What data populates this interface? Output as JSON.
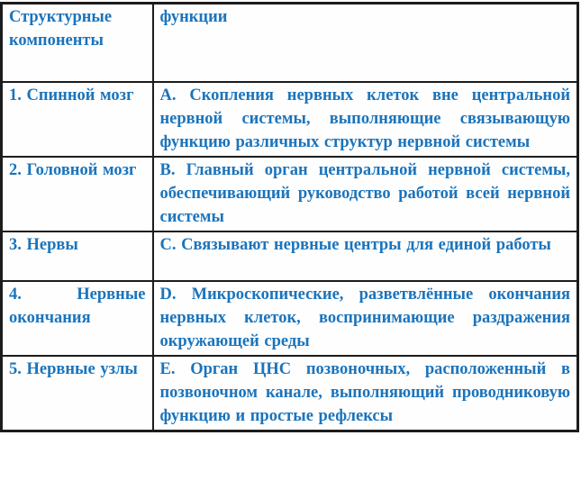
{
  "accent_color": "#1b74bc",
  "border_color": "#1c1c1c",
  "table": {
    "headers": {
      "components": "Структурные компоненты",
      "functions": "функции"
    },
    "rows": [
      {
        "component": "1. Спинной мозг",
        "function": "A. Скопления нервных клеток вне центральной нервной системы, выполняющие связывающую функцию различных структур нервной системы"
      },
      {
        "component": "2. Головной мозг",
        "function": "B. Главный орган центральной нервной системы, обеспечивающий руководство работой всей нервной системы"
      },
      {
        "component": "3. Нервы",
        "function": "C. Связывают нервные центры для единой работы"
      },
      {
        "component": "4. Нервные окончания",
        "function": "D. Микроскопические, разветвлённые окончания нервных клеток, воспринимающие раздражения окружающей среды"
      },
      {
        "component": "5. Нервные узлы",
        "function": "E. Орган ЦНС позвоночных, расположенный в позвоночном канале, выполняющий проводниковую функцию и простые рефлексы"
      }
    ]
  }
}
